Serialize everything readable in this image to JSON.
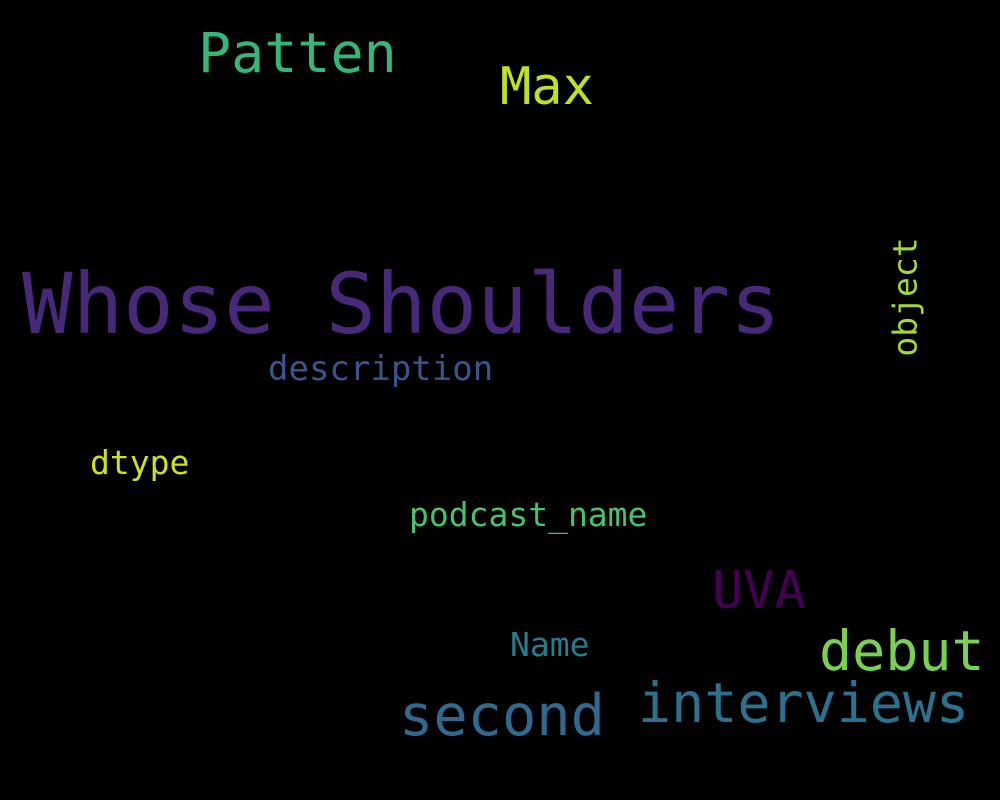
{
  "colors": {
    "background": "#000000"
  },
  "words": [
    {
      "key": "whose_shoulders",
      "text": "Whose Shoulders",
      "color": "#482878"
    },
    {
      "key": "patten",
      "text": "Patten",
      "color": "#35b779"
    },
    {
      "key": "max",
      "text": "Max",
      "color": "#c2df23"
    },
    {
      "key": "interviews",
      "text": "interviews",
      "color": "#2c728e"
    },
    {
      "key": "second",
      "text": "second",
      "color": "#31688e"
    },
    {
      "key": "debut",
      "text": "debut",
      "color": "#7ad151"
    },
    {
      "key": "uva",
      "text": "UVA",
      "color": "#440154"
    },
    {
      "key": "object",
      "text": "object",
      "color": "#a0da39"
    },
    {
      "key": "description",
      "text": "description",
      "color": "#39568c"
    },
    {
      "key": "podcast_name",
      "text": "podcast_name",
      "color": "#4ac16d"
    },
    {
      "key": "dtype",
      "text": "dtype",
      "color": "#d0e11c"
    },
    {
      "key": "name",
      "text": "Name",
      "color": "#287c8e"
    }
  ]
}
